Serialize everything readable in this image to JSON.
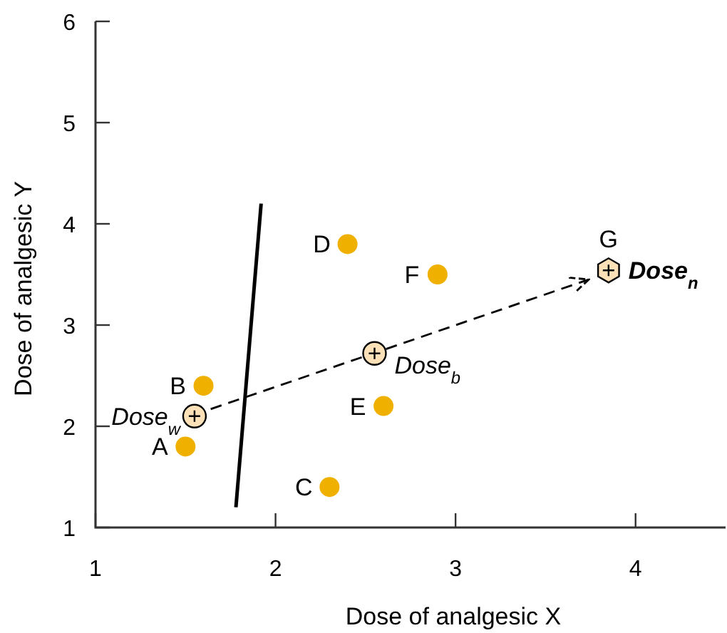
{
  "chart_data": {
    "type": "scatter",
    "xlabel": "Dose of analgesic X",
    "ylabel": "Dose of analgesic Y",
    "xlim": [
      1,
      4.5
    ],
    "ylim": [
      1,
      6
    ],
    "xticks": [
      1,
      2,
      3,
      4
    ],
    "yticks": [
      1,
      2,
      3,
      4,
      5,
      6
    ],
    "grid": false,
    "series": [
      {
        "color": "#f0b000",
        "marker": "circle",
        "x": [
          1.5,
          1.6,
          2.3,
          2.4,
          2.6,
          2.9
        ],
        "values": [
          1.8,
          2.4,
          1.4,
          3.8,
          2.2,
          3.5
        ]
      },
      {
        "type": "line",
        "color": "#000000",
        "line_style": "solid",
        "x": [
          1.78,
          1.92
        ],
        "values": [
          1.2,
          4.2
        ]
      },
      {
        "type": "line",
        "color": "#000000",
        "line_style": "dashed",
        "x": [
          1.64,
          3.74
        ],
        "values": [
          2.17,
          3.45
        ]
      },
      {
        "name": "Dose$_{w}$",
        "color": "#fbe0b8",
        "marker": "circle",
        "x": [
          1.55
        ],
        "values": [
          2.1
        ]
      },
      {
        "name": "Dose$_{b}$",
        "color": "#fbe0b8",
        "marker": "circle",
        "x": [
          2.55
        ],
        "values": [
          2.72
        ]
      },
      {
        "name": "Dose$_{n}$",
        "color": "#fbe0b8",
        "x": [
          3.85
        ],
        "values": [
          3.54
        ]
      }
    ],
    "annotations": [
      {
        "text": "A",
        "x": 1.5,
        "y": 1.8
      },
      {
        "text": "B",
        "x": 1.6,
        "y": 2.4
      },
      {
        "text": "C",
        "x": 2.3,
        "y": 1.4
      },
      {
        "text": "D",
        "x": 2.4,
        "y": 3.8
      },
      {
        "text": "E",
        "x": 2.6,
        "y": 2.2
      },
      {
        "text": "F",
        "x": 2.9,
        "y": 3.5
      },
      {
        "text": "G",
        "x": 3.85,
        "y": 3.54
      }
    ]
  }
}
